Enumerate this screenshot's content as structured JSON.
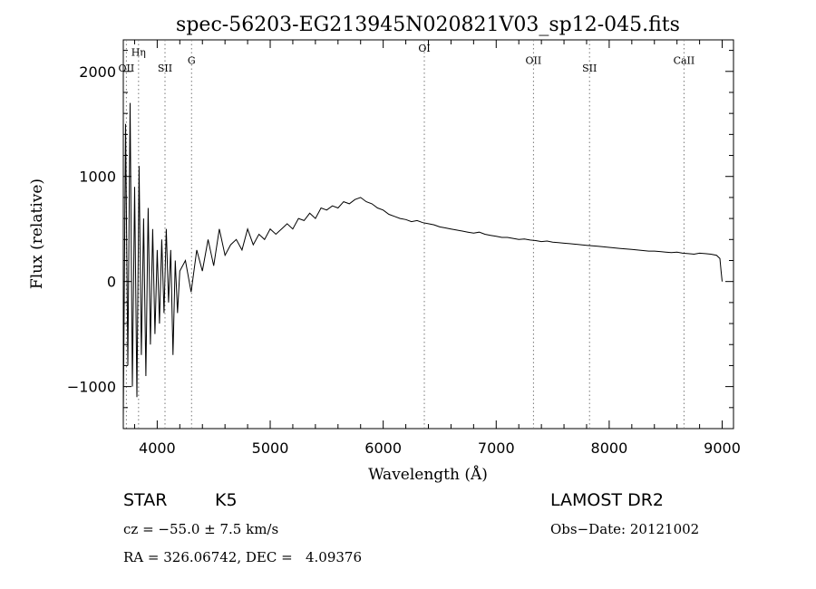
{
  "chart_data": {
    "type": "line",
    "title": "spec-56203-EG213945N020821V03_sp12-045.fits",
    "xlabel": "Wavelength (Å)",
    "ylabel": "Flux (relative)",
    "xlim": [
      3700,
      9100
    ],
    "ylim": [
      -1400,
      2300
    ],
    "xticks": [
      4000,
      5000,
      6000,
      7000,
      8000,
      9000
    ],
    "xtick_labels": [
      "4000",
      "5000",
      "6000",
      "7000",
      "8000",
      "9000"
    ],
    "yticks": [
      -1000,
      0,
      1000,
      2000
    ],
    "ytick_labels": [
      "−1000",
      "0",
      "1000",
      "2000"
    ],
    "grid": false,
    "series": [
      {
        "x": [
          3700,
          3720,
          3740,
          3760,
          3780,
          3800,
          3820,
          3840,
          3860,
          3880,
          3900,
          3920,
          3940,
          3960,
          3980,
          4000,
          4020,
          4040,
          4060,
          4080,
          4100,
          4120,
          4140,
          4160,
          4180,
          4200,
          4250,
          4300,
          4350,
          4400,
          4450,
          4500,
          4550,
          4600,
          4650,
          4700,
          4750,
          4800,
          4850,
          4900,
          4950,
          5000,
          5050,
          5100,
          5150,
          5200,
          5250,
          5300,
          5350,
          5400,
          5450,
          5500,
          5550,
          5600,
          5650,
          5700,
          5750,
          5800,
          5850,
          5900,
          5950,
          6000,
          6050,
          6100,
          6150,
          6200,
          6250,
          6300,
          6350,
          6400,
          6450,
          6500,
          6550,
          6600,
          6650,
          6700,
          6750,
          6800,
          6850,
          6900,
          6950,
          7000,
          7050,
          7100,
          7150,
          7200,
          7250,
          7300,
          7350,
          7400,
          7450,
          7500,
          7550,
          7600,
          7650,
          7700,
          7750,
          7800,
          7850,
          7900,
          7950,
          8000,
          8050,
          8100,
          8150,
          8200,
          8250,
          8300,
          8350,
          8400,
          8450,
          8500,
          8550,
          8600,
          8650,
          8700,
          8750,
          8800,
          8850,
          8900,
          8950,
          8980,
          8990,
          9000
        ],
        "y": [
          -1300,
          1500,
          -800,
          1700,
          -1000,
          900,
          -1100,
          1100,
          -700,
          600,
          -900,
          700,
          -600,
          500,
          -500,
          300,
          -400,
          400,
          -300,
          500,
          -200,
          300,
          -700,
          200,
          -300,
          100,
          200,
          -100,
          300,
          100,
          400,
          150,
          500,
          250,
          350,
          400,
          300,
          500,
          350,
          450,
          400,
          500,
          450,
          500,
          550,
          500,
          600,
          580,
          650,
          600,
          700,
          680,
          720,
          700,
          760,
          740,
          780,
          800,
          760,
          740,
          700,
          680,
          640,
          620,
          600,
          590,
          570,
          580,
          560,
          550,
          540,
          520,
          510,
          500,
          490,
          480,
          470,
          460,
          470,
          450,
          440,
          430,
          420,
          420,
          410,
          400,
          405,
          395,
          390,
          380,
          385,
          375,
          370,
          365,
          360,
          355,
          350,
          345,
          340,
          335,
          330,
          325,
          320,
          315,
          310,
          305,
          300,
          295,
          290,
          290,
          285,
          280,
          275,
          280,
          270,
          265,
          260,
          270,
          265,
          260,
          250,
          220,
          100,
          0
        ],
        "stroke": "#000000"
      }
    ],
    "spectral_lines": [
      {
        "label": "OII",
        "x": 3727,
        "label_y": 2000
      },
      {
        "label": "Hη",
        "x": 3835,
        "label_y": 2150
      },
      {
        "label": "SII",
        "x": 4069,
        "label_y": 2000
      },
      {
        "label": "G",
        "x": 4304,
        "label_y": 2070
      },
      {
        "label": "OI",
        "x": 6364,
        "label_y": 2190
      },
      {
        "label": "OII",
        "x": 7330,
        "label_y": 2070
      },
      {
        "label": "SII",
        "x": 7826,
        "label_y": 2000
      },
      {
        "label": "CaII",
        "x": 8662,
        "label_y": 2070
      }
    ]
  },
  "footer": {
    "object_class": "STAR",
    "subclass": "K5",
    "survey": "LAMOST DR2",
    "cz": "cz = −55.0 ± 7.5 km/s",
    "obs_date": "Obs−Date: 20121002",
    "radec": "RA = 326.06742, DEC =   4.09376"
  }
}
